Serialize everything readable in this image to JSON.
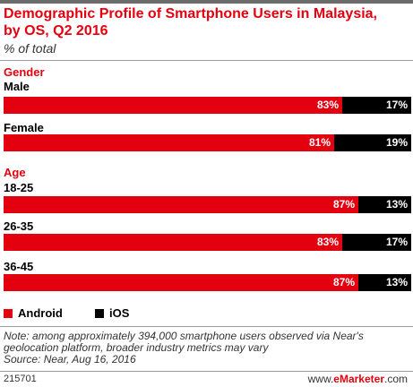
{
  "title": "Demographic Profile of Smartphone Users in Malaysia, by OS, Q2 2016",
  "subtitle": "% of total",
  "chart_data": {
    "type": "bar",
    "stacked": true,
    "orientation": "horizontal",
    "title": "Demographic Profile of Smartphone Users in Malaysia, by OS, Q2 2016",
    "subtitle": "% of total",
    "groups": [
      {
        "label": "Gender",
        "categories": [
          "Male",
          "Female"
        ]
      },
      {
        "label": "Age",
        "categories": [
          "18-25",
          "26-35",
          "36-45"
        ]
      }
    ],
    "categories": [
      "Male",
      "Female",
      "18-25",
      "26-35",
      "36-45"
    ],
    "series": [
      {
        "name": "Android",
        "color": "#e3000f",
        "values": [
          83,
          81,
          87,
          83,
          87
        ],
        "labels": [
          "83%",
          "81%",
          "87%",
          "83%",
          "87%"
        ]
      },
      {
        "name": "iOS",
        "color": "#000000",
        "values": [
          17,
          19,
          13,
          17,
          13
        ],
        "labels": [
          "17%",
          "19%",
          "13%",
          "17%",
          "13%"
        ]
      }
    ],
    "xlim": [
      0,
      100
    ]
  },
  "note": "Note: among approximately 394,000 smartphone users observed via Near's geolocation platform, broader industry metrics may vary",
  "source": "Source: Near, Aug 16, 2016",
  "footer": {
    "chart_id": "215701",
    "brand_prefix": "www.",
    "brand_name": "eMarketer",
    "brand_suffix": ".com"
  }
}
